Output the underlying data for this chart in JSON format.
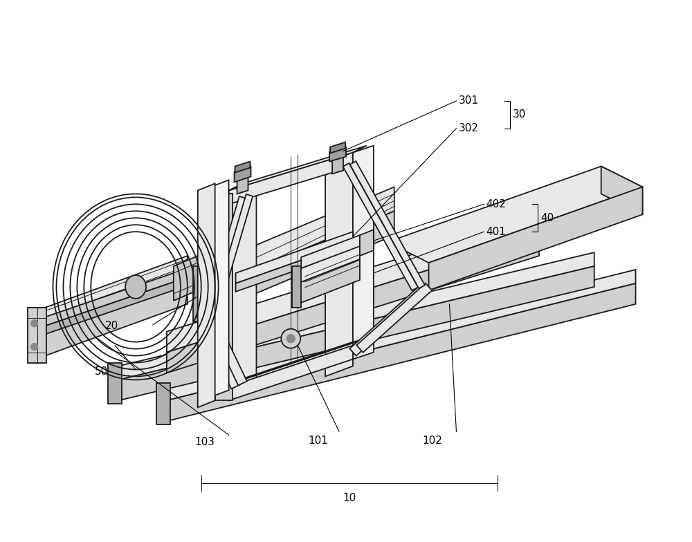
{
  "bg_color": "#ffffff",
  "line_color": "#1a1a1a",
  "lw_main": 1.3,
  "lw_thin": 0.7,
  "lw_ann": 0.8,
  "fs_label": 11,
  "fig_width": 10.0,
  "fig_height": 7.84
}
